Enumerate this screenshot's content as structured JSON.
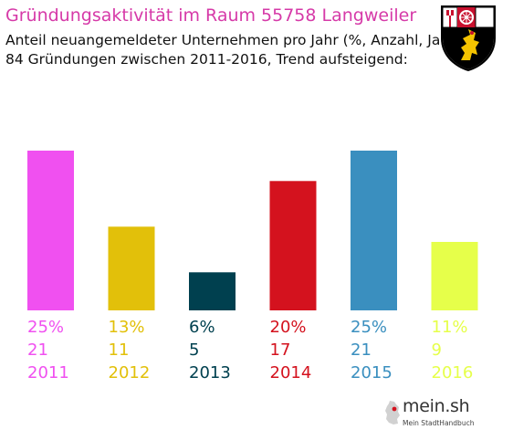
{
  "header": {
    "title": "Gründungsaktivität im Raum 55758 Langweiler",
    "subtitle_1": "Anteil neuangemeldeter Unternehmen pro Jahr (%, Anzahl, Jahr)",
    "subtitle_2": "84 Gründungen zwischen 2011-2016, Trend aufsteigend:"
  },
  "crest": {
    "icon": "rhineland-palatinate-coat-of-arms-icon",
    "colors": [
      "#c8102e",
      "#ffffff",
      "#000000",
      "#f4c300"
    ]
  },
  "logo": {
    "name": "mein.sh",
    "tagline": "Mein StadtHandbuch"
  },
  "chart_data": {
    "type": "bar",
    "categories": [
      "2011",
      "2012",
      "2013",
      "2014",
      "2015",
      "2016"
    ],
    "values": [
      21,
      11,
      5,
      17,
      21,
      9
    ],
    "percentages": [
      "25%",
      "13%",
      "6%",
      "20%",
      "25%",
      "11%"
    ],
    "colors": [
      "#f050f0",
      "#e2c00a",
      "#00404f",
      "#d4121e",
      "#3a8fbf",
      "#e6ff4a"
    ],
    "total": 84
  }
}
